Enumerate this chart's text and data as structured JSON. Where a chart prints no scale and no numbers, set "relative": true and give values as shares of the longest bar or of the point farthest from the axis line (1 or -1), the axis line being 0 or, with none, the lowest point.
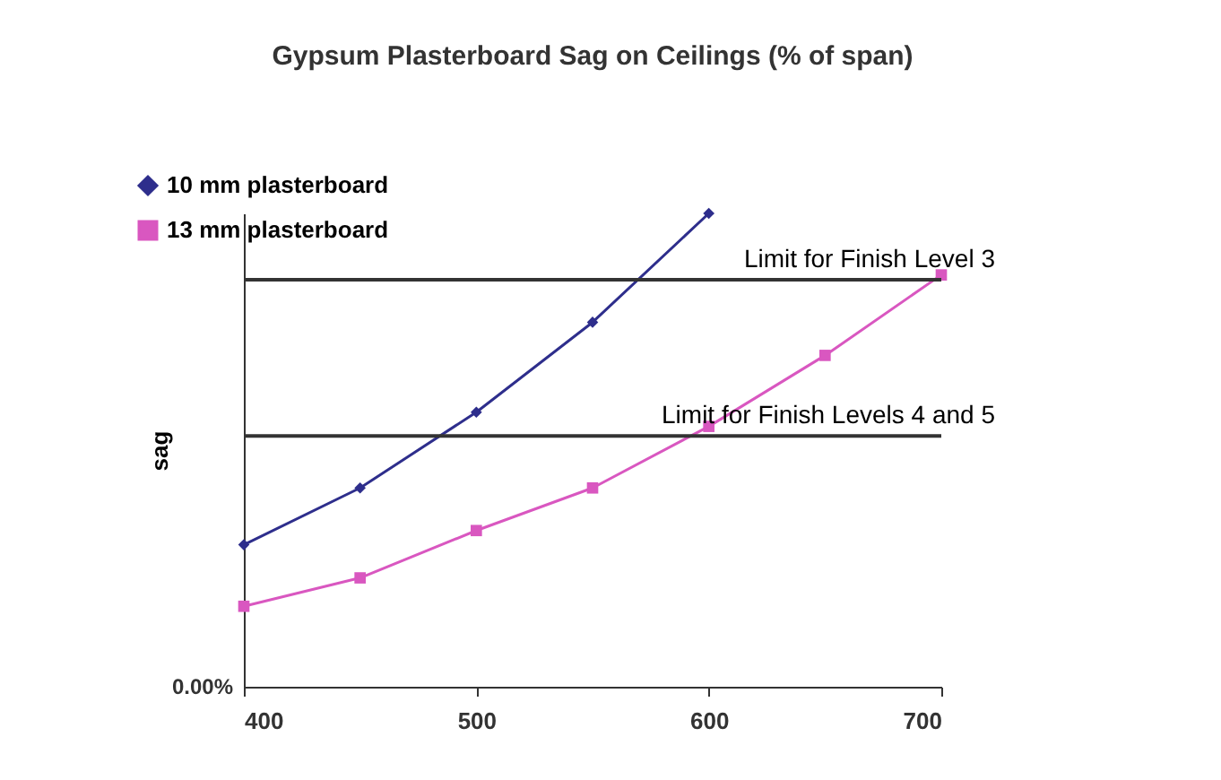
{
  "chart_data": {
    "type": "line",
    "title": "Gypsum Plasterboard Sag on Ceilings (% of span)",
    "ylabel": "sag",
    "relative": true,
    "xlim": [
      400,
      700
    ],
    "xticks": [
      400,
      500,
      600,
      700
    ],
    "grid": false,
    "legend": "top left",
    "line_style": "solid",
    "series": [
      {
        "name": "10 mm plasterboard",
        "color": "#2e2e8c",
        "marker": "diamond",
        "x": [
          400,
          450,
          500,
          550,
          600
        ],
        "values": [
          0.3,
          0.42,
          0.58,
          0.77,
          1
        ]
      },
      {
        "name": "13 mm plasterboard",
        "color": "#d957c0",
        "marker": "square",
        "x": [
          400,
          450,
          500,
          550,
          600,
          650,
          700
        ],
        "values": [
          0.17,
          0.23,
          0.33,
          0.42,
          0.55,
          0.7,
          0.87
        ]
      }
    ],
    "ref_lines": [
      {
        "axis": "y",
        "value": 0.86,
        "label": "Limit for Finish Level 3",
        "color": "#333333"
      },
      {
        "axis": "y",
        "value": 0.53,
        "label": "Limit for Finish Levels 4 and 5",
        "color": "#333333"
      }
    ],
    "annotations": [
      "0.00%"
    ]
  }
}
